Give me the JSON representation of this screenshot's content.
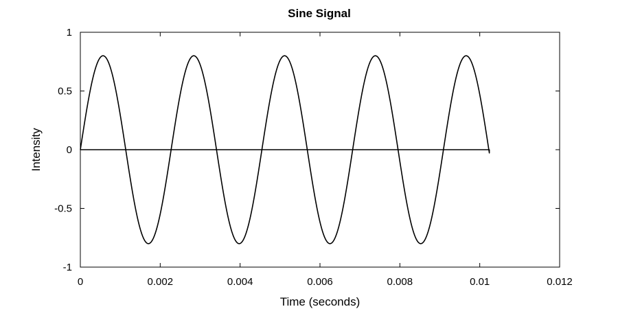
{
  "chart_data": {
    "type": "line",
    "title": "Sine Signal",
    "xlabel": "Time (seconds)",
    "ylabel": "Intensity",
    "xlim": [
      0,
      0.012
    ],
    "ylim": [
      -1,
      1
    ],
    "xticks": [
      0,
      0.002,
      0.004,
      0.006,
      0.008,
      0.01,
      0.012
    ],
    "xtick_labels": [
      "0",
      "0.002",
      "0.004",
      "0.006",
      "0.008",
      "0.01",
      "0.012"
    ],
    "yticks": [
      -1,
      -0.5,
      0,
      0.5,
      1
    ],
    "ytick_labels": [
      "-1",
      "-0.5",
      "0",
      "0.5",
      "1"
    ],
    "grid": false,
    "legend": "none",
    "line_color": "#000000",
    "series": [
      {
        "function": "0.8*sin(2*pi*440*t)",
        "amplitude": 0.8,
        "frequency_hz": 440,
        "x_start": 0,
        "x_end": 0.01024,
        "closing_line_to_zero": true
      }
    ]
  }
}
